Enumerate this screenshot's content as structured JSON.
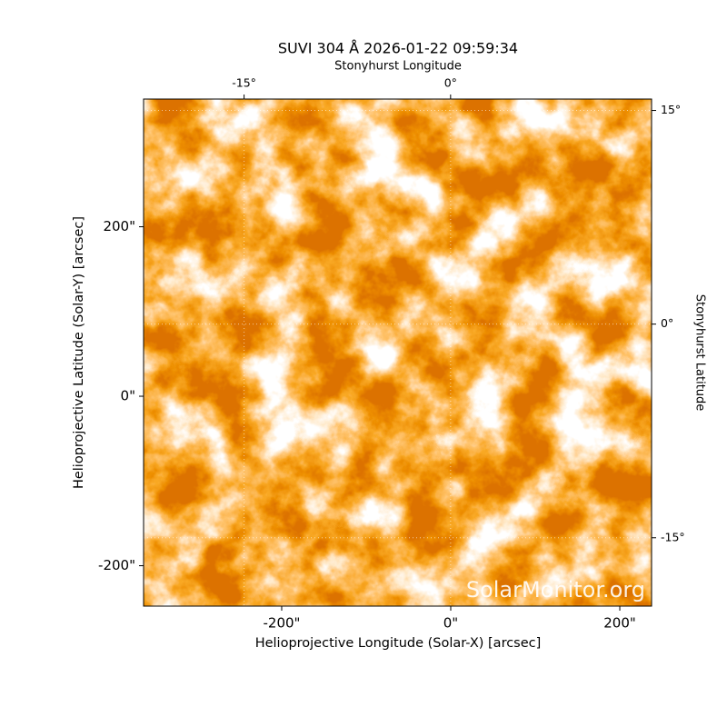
{
  "chart_data": {
    "type": "image",
    "title": "SUVI 304 Å 2026-01-22 09:59:34",
    "x_label": "Helioprojective Longitude (Solar-X) [arcsec]",
    "y_label": "Helioprojective Latitude (Solar-Y) [arcsec]",
    "x2_label": "Stonyhurst Longitude",
    "y2_label": "Stonyhurst Latitude",
    "watermark": "SolarMonitor.org",
    "xlim": [
      -363.4,
      237.6
    ],
    "ylim": [
      -247.7,
      350.7
    ],
    "xticks": [
      {
        "value": -200,
        "label": "-200\""
      },
      {
        "value": 0,
        "label": "0\""
      },
      {
        "value": 200,
        "label": "200\""
      }
    ],
    "yticks": [
      {
        "value": -200,
        "label": "-200\""
      },
      {
        "value": 0,
        "label": "0\""
      },
      {
        "value": 200,
        "label": "200\""
      }
    ],
    "x2lim": [
      -22.3,
      14.6
    ],
    "x2ticks": [
      {
        "value": -15,
        "label": "-15°"
      },
      {
        "value": 0,
        "label": "0°"
      }
    ],
    "y2lim": [
      -19.8,
      15.8
    ],
    "y2ticks": [
      {
        "value": -15,
        "label": "-15°"
      },
      {
        "value": 0,
        "label": "0°"
      },
      {
        "value": 15,
        "label": "15°"
      }
    ],
    "grid": true
  }
}
